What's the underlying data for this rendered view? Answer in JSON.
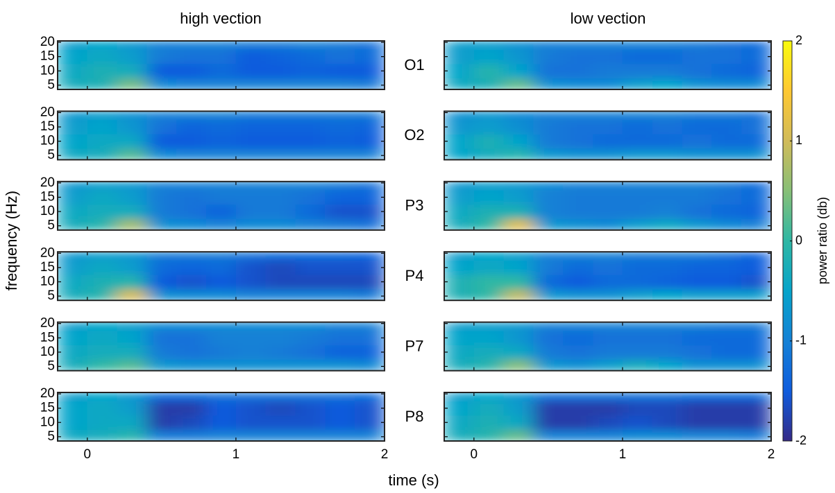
{
  "chart_data": {
    "type": "heatmap-grid",
    "columns": [
      "high vection",
      "low vection"
    ],
    "rows": [
      "O1",
      "O2",
      "P3",
      "P4",
      "P7",
      "P8"
    ],
    "x_label": "time (s)",
    "y_label": "frequency (Hz)",
    "xlim": [
      -0.2,
      2
    ],
    "xticks": [
      0,
      1,
      2
    ],
    "ylim": [
      3.5,
      20.5
    ],
    "yticks": [
      5,
      10,
      15,
      20
    ],
    "x": [
      -0.1,
      0.1,
      0.3,
      0.5,
      0.7,
      0.9,
      1.1,
      1.3,
      1.5,
      1.7,
      1.9
    ],
    "y": [
      5,
      10,
      15,
      20
    ],
    "colormap": [
      "#352a87",
      "#0f5cdd",
      "#1481d6",
      "#06a4ca",
      "#2eb7a4",
      "#87bf77",
      "#d1bb59",
      "#fec832",
      "#f9fb0e"
    ],
    "colorbar": {
      "label": "power ratio (db)",
      "lim": [
        -2,
        2
      ],
      "ticks": [
        -2,
        -1,
        0,
        1,
        2
      ]
    },
    "panels": [
      [
        [
          [
            -0.3,
            -0.2,
            0.4,
            -0.9,
            -1.0,
            -1.0,
            -1.0,
            -1.0,
            -1.0,
            -1.0,
            -1.1
          ],
          [
            -0.4,
            -0.2,
            -0.3,
            -1.5,
            -1.5,
            -1.3,
            -1.5,
            -1.5,
            -1.4,
            -1.5,
            -1.5
          ],
          [
            -0.5,
            -0.4,
            -0.6,
            -1.1,
            -1.2,
            -1.2,
            -1.5,
            -1.4,
            -1.3,
            -1.2,
            -1.3
          ],
          [
            -0.6,
            -0.5,
            -0.7,
            -1.0,
            -1.0,
            -1.0,
            -1.1,
            -1.1,
            -1.0,
            -1.1,
            -1.2
          ]
        ],
        [
          [
            -0.4,
            -0.2,
            0.3,
            -0.8,
            -0.9,
            -0.9,
            -0.6,
            -0.5,
            -0.8,
            -0.9,
            -0.9
          ],
          [
            -0.5,
            -0.1,
            -0.5,
            -1.2,
            -1.2,
            -1.1,
            -1.1,
            -1.1,
            -1.2,
            -1.3,
            -1.4
          ],
          [
            -0.6,
            -0.5,
            -0.7,
            -1.1,
            -1.2,
            -1.2,
            -1.3,
            -1.3,
            -1.2,
            -1.2,
            -1.3
          ],
          [
            -0.6,
            -0.6,
            -0.8,
            -1.0,
            -1.0,
            -1.0,
            -1.0,
            -1.0,
            -1.1,
            -1.2,
            -1.3
          ]
        ]
      ],
      [
        [
          [
            -0.4,
            -0.3,
            0.2,
            -0.9,
            -1.0,
            -1.0,
            -1.0,
            -1.0,
            -1.0,
            -1.0,
            -1.0
          ],
          [
            -0.5,
            -0.4,
            -0.4,
            -1.5,
            -1.5,
            -1.4,
            -1.5,
            -1.5,
            -1.5,
            -1.4,
            -1.5
          ],
          [
            -0.6,
            -0.5,
            -0.7,
            -1.2,
            -1.4,
            -1.3,
            -1.4,
            -1.4,
            -1.4,
            -1.3,
            -1.4
          ],
          [
            -0.7,
            -0.6,
            -0.8,
            -1.0,
            -1.0,
            -1.0,
            -1.1,
            -1.1,
            -1.1,
            -1.1,
            -1.1
          ]
        ],
        [
          [
            -0.5,
            -0.3,
            -0.1,
            -0.7,
            -0.8,
            -0.8,
            -0.7,
            -0.7,
            -0.8,
            -0.8,
            -0.8
          ],
          [
            -0.5,
            -0.2,
            -0.5,
            -1.1,
            -1.2,
            -1.3,
            -1.3,
            -1.3,
            -1.2,
            -1.3,
            -1.3
          ],
          [
            -0.7,
            -0.6,
            -0.8,
            -1.1,
            -1.2,
            -1.2,
            -1.3,
            -1.2,
            -1.3,
            -1.3,
            -1.2
          ],
          [
            -0.8,
            -0.7,
            -0.9,
            -1.0,
            -1.0,
            -1.0,
            -1.0,
            -1.0,
            -1.1,
            -1.1,
            -1.2
          ]
        ]
      ],
      [
        [
          [
            -0.3,
            -0.1,
            0.7,
            -0.8,
            -0.9,
            -1.0,
            -0.9,
            -0.9,
            -1.0,
            -1.1,
            -1.2
          ],
          [
            -0.4,
            -0.3,
            -0.3,
            -1.1,
            -1.2,
            -1.4,
            -1.1,
            -1.1,
            -1.3,
            -1.6,
            -1.6
          ],
          [
            -0.6,
            -0.4,
            -0.6,
            -1.1,
            -1.2,
            -1.1,
            -1.1,
            -1.1,
            -1.2,
            -1.4,
            -1.4
          ],
          [
            -0.7,
            -0.6,
            -0.7,
            -1.0,
            -1.0,
            -1.0,
            -1.0,
            -1.0,
            -1.0,
            -1.1,
            -1.2
          ]
        ],
        [
          [
            -0.3,
            0.0,
            1.2,
            -0.7,
            -0.8,
            -0.9,
            -0.6,
            -0.4,
            -0.7,
            -0.9,
            -1.0
          ],
          [
            -0.4,
            -0.2,
            -0.2,
            -1.0,
            -1.1,
            -1.1,
            -1.1,
            -1.0,
            -1.2,
            -1.3,
            -1.4
          ],
          [
            -0.6,
            -0.5,
            -0.6,
            -1.0,
            -1.1,
            -1.1,
            -1.1,
            -1.1,
            -1.1,
            -1.2,
            -1.3
          ],
          [
            -0.7,
            -0.6,
            -0.7,
            -0.9,
            -1.0,
            -1.0,
            -1.0,
            -1.0,
            -1.0,
            -1.1,
            -1.3
          ]
        ]
      ],
      [
        [
          [
            -0.3,
            -0.1,
            1.1,
            -0.8,
            -0.9,
            -0.9,
            -1.0,
            -1.0,
            -1.0,
            -1.0,
            -1.1
          ],
          [
            -0.4,
            -0.2,
            -0.1,
            -1.5,
            -1.6,
            -1.5,
            -1.6,
            -1.7,
            -1.7,
            -1.7,
            -1.7
          ],
          [
            -0.6,
            -0.4,
            -0.6,
            -1.3,
            -1.4,
            -1.3,
            -1.6,
            -1.7,
            -1.6,
            -1.6,
            -1.6
          ],
          [
            -0.7,
            -0.6,
            -0.7,
            -1.1,
            -1.1,
            -1.1,
            -1.2,
            -1.3,
            -1.3,
            -1.3,
            -1.4
          ]
        ],
        [
          [
            -0.2,
            0.0,
            0.9,
            -0.7,
            -0.8,
            -0.8,
            -0.6,
            -0.5,
            -0.6,
            -0.6,
            -0.6
          ],
          [
            -0.2,
            0.0,
            0.0,
            -1.3,
            -1.5,
            -1.3,
            -1.3,
            -1.4,
            -1.5,
            -1.5,
            -1.6
          ],
          [
            -0.5,
            -0.4,
            -0.5,
            -1.1,
            -1.3,
            -1.2,
            -1.3,
            -1.3,
            -1.4,
            -1.4,
            -1.5
          ],
          [
            -0.6,
            -0.5,
            -0.6,
            -1.0,
            -1.0,
            -1.0,
            -1.1,
            -1.1,
            -1.1,
            -1.2,
            -1.4
          ]
        ]
      ],
      [
        [
          [
            -0.3,
            0.0,
            0.2,
            -0.7,
            -0.8,
            -0.8,
            -0.8,
            -0.8,
            -0.8,
            -0.8,
            -0.9
          ],
          [
            -0.4,
            -0.3,
            -0.3,
            -1.1,
            -1.2,
            -1.1,
            -1.0,
            -1.1,
            -1.2,
            -1.4,
            -1.4
          ],
          [
            -0.5,
            -0.4,
            -0.5,
            -1.2,
            -1.2,
            -1.0,
            -1.0,
            -1.0,
            -1.1,
            -1.2,
            -1.2
          ],
          [
            -0.6,
            -0.5,
            -0.6,
            -0.9,
            -0.9,
            -0.9,
            -0.9,
            -0.9,
            -0.9,
            -1.0,
            -1.0
          ]
        ],
        [
          [
            -0.3,
            -0.1,
            0.5,
            -0.7,
            -0.8,
            -0.6,
            -0.3,
            -0.5,
            -0.8,
            -0.8,
            -0.8
          ],
          [
            -0.4,
            -0.3,
            -0.4,
            -1.1,
            -1.2,
            -1.1,
            -1.1,
            -1.1,
            -1.2,
            -1.3,
            -1.3
          ],
          [
            -0.5,
            -0.5,
            -0.7,
            -1.2,
            -1.3,
            -1.2,
            -1.2,
            -1.2,
            -1.3,
            -1.3,
            -1.3
          ],
          [
            -0.6,
            -0.6,
            -0.7,
            -1.0,
            -1.0,
            -1.0,
            -1.0,
            -1.0,
            -1.0,
            -1.1,
            -1.1
          ]
        ]
      ],
      [
        [
          [
            -0.4,
            -0.3,
            -0.1,
            -1.1,
            -1.1,
            -1.0,
            -1.0,
            -1.0,
            -1.0,
            -1.0,
            -1.0
          ],
          [
            -0.5,
            -0.4,
            -0.4,
            -1.8,
            -1.7,
            -1.5,
            -1.6,
            -1.6,
            -1.6,
            -1.5,
            -1.6
          ],
          [
            -0.5,
            -0.4,
            -0.6,
            -1.8,
            -1.8,
            -1.5,
            -1.6,
            -1.7,
            -1.6,
            -1.5,
            -1.6
          ],
          [
            -0.6,
            -0.5,
            -0.7,
            -1.3,
            -1.3,
            -1.2,
            -1.2,
            -1.2,
            -1.2,
            -1.2,
            -1.3
          ]
        ],
        [
          [
            -0.3,
            -0.1,
            0.3,
            -1.0,
            -1.0,
            -1.0,
            -0.9,
            -0.9,
            -1.0,
            -1.0,
            -1.1
          ],
          [
            -0.4,
            -0.2,
            -0.4,
            -1.8,
            -1.8,
            -1.7,
            -1.6,
            -1.7,
            -1.8,
            -1.8,
            -1.8
          ],
          [
            -0.5,
            -0.3,
            -0.6,
            -1.8,
            -1.8,
            -1.8,
            -1.7,
            -1.7,
            -1.8,
            -1.8,
            -1.8
          ],
          [
            -0.6,
            -0.5,
            -0.7,
            -1.2,
            -1.2,
            -1.2,
            -1.2,
            -1.2,
            -1.3,
            -1.3,
            -1.3
          ]
        ]
      ]
    ]
  }
}
